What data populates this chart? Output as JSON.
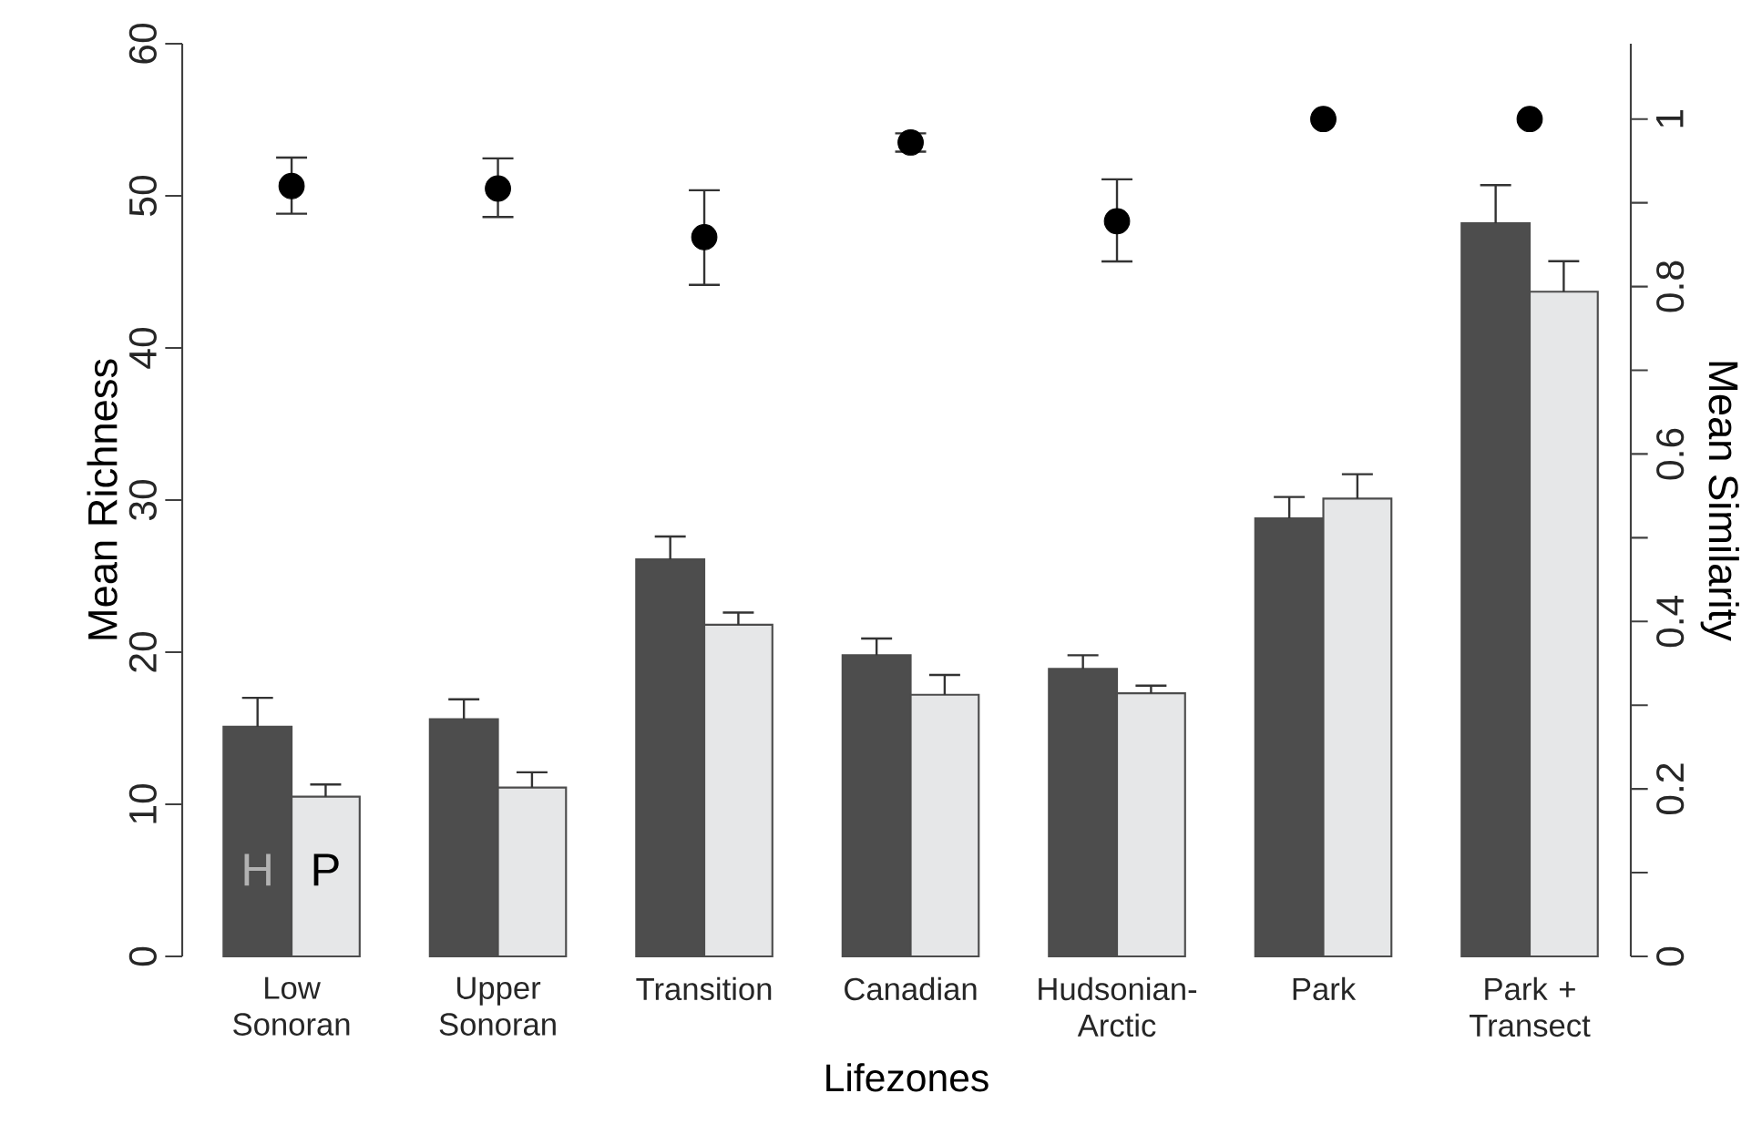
{
  "chart_data": {
    "type": "bar",
    "xlabel": "Lifezones",
    "ylabel": "Mean Richness",
    "y2label": "Mean Similarity",
    "categories": [
      "Low Sonoran",
      "Upper Sonoran",
      "Transition",
      "Canadian",
      "Hudsonian-Arctic",
      "Park",
      "Park + Transect"
    ],
    "ylim": [
      0,
      60
    ],
    "yticks": [
      0,
      10,
      20,
      30,
      40,
      50,
      60
    ],
    "y2lim": [
      0,
      1.09
    ],
    "y2ticks": [
      0,
      {
        "value": 0.1,
        "label": null
      },
      0.2,
      {
        "value": 0.3,
        "label": null
      },
      0.4,
      {
        "value": 0.5,
        "label": null
      },
      0.6,
      {
        "value": 0.7,
        "label": null
      },
      0.8,
      {
        "value": 0.9,
        "label": null
      },
      1
    ],
    "series": [
      {
        "name": "H",
        "color": "#4d4d4d",
        "values": [
          15.1,
          15.6,
          26.1,
          19.8,
          18.9,
          28.8,
          48.2
        ],
        "errors": [
          [
            15.1,
            17.0
          ],
          [
            15.6,
            16.9
          ],
          [
            26.1,
            27.6
          ],
          [
            19.8,
            20.9
          ],
          [
            18.9,
            19.8
          ],
          [
            28.8,
            30.2
          ],
          [
            48.2,
            50.7
          ]
        ]
      },
      {
        "name": "P",
        "color": "#e6e7e8",
        "values": [
          10.5,
          11.1,
          21.8,
          17.2,
          17.3,
          30.1,
          43.7
        ],
        "errors": [
          [
            10.5,
            11.3
          ],
          [
            11.1,
            12.1
          ],
          [
            21.8,
            22.6
          ],
          [
            17.2,
            18.5
          ],
          [
            17.3,
            17.8
          ],
          [
            30.1,
            31.7
          ],
          [
            43.7,
            45.7
          ]
        ]
      },
      {
        "type": "scatter",
        "axis": "y2",
        "marker": "circle",
        "color": "#000000",
        "values": [
          0.92,
          0.917,
          0.859,
          0.972,
          0.878,
          1,
          1
        ],
        "errors": [
          [
            0.887,
            0.954
          ],
          [
            0.883,
            0.953
          ],
          [
            0.802,
            0.915
          ],
          [
            0.961,
            0.983
          ],
          [
            0.83,
            0.928
          ],
          null,
          null
        ]
      }
    ]
  }
}
